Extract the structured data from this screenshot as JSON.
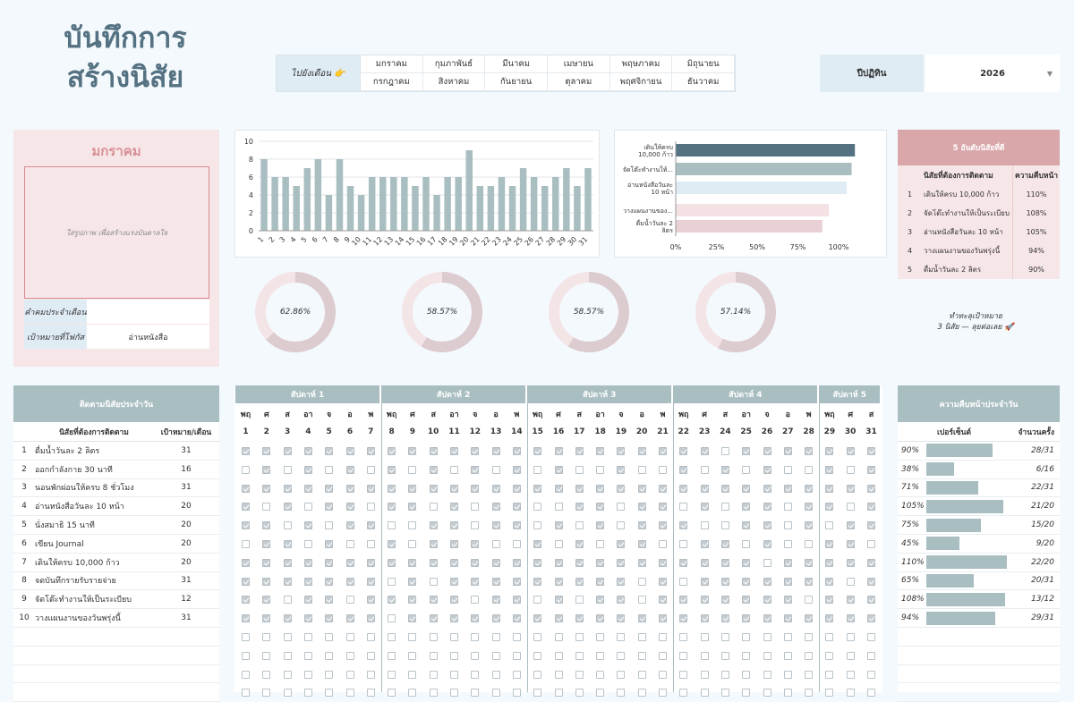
{
  "title_line1": "บันทึกการ",
  "title_line2": "สร้างนิสัย",
  "nav": {
    "goto_label": "ไปยังเดือน 👉",
    "months": [
      "มกราคม",
      "กุมภาพันธ์",
      "มีนาคม",
      "เมษายน",
      "พฤษภาคม",
      "มิถุนายน",
      "กรกฎาคม",
      "สิงหาคม",
      "กันยายน",
      "ตุลาคม",
      "พฤศจิกายน",
      "ธันวาคม"
    ]
  },
  "year": {
    "label": "ปีปฏิทิน",
    "value": "2026"
  },
  "month_card": {
    "name": "มกราคม",
    "photo_placeholder": "ใส่รูปภาพ เพื่อสร้างแรงบันดาลใจ",
    "quote_label": "คำคมประจำเดือน",
    "quote_value": "",
    "focus_label": "เป้าหมายที่โฟกัส",
    "focus_value": "อ่านหนังสือ"
  },
  "chart_data": [
    {
      "type": "bar",
      "categories": [
        "1",
        "2",
        "3",
        "4",
        "5",
        "6",
        "7",
        "8",
        "9",
        "10",
        "11",
        "12",
        "13",
        "14",
        "15",
        "16",
        "17",
        "18",
        "19",
        "20",
        "21",
        "22",
        "23",
        "24",
        "25",
        "26",
        "27",
        "28",
        "29",
        "30",
        "31"
      ],
      "values": [
        8,
        6,
        6,
        5,
        7,
        8,
        4,
        8,
        5,
        4,
        6,
        6,
        6,
        6,
        5,
        6,
        4,
        6,
        6,
        9,
        5,
        5,
        6,
        5,
        7,
        6,
        5,
        6,
        7,
        5,
        7
      ],
      "ylim": [
        0,
        10
      ],
      "yticks": [
        0,
        2,
        4,
        6,
        8,
        10
      ],
      "grid": true
    },
    {
      "type": "bar",
      "orientation": "horizontal",
      "categories": [
        "เดินให้ครบ 10,000 ก้าว",
        "จัดโต๊ะทำงานให้...",
        "อ่านหนังสือวันละ 10 หน้า",
        "วางแผนงานของ...",
        "ดื่มน้ำวันละ 2 ลิตร"
      ],
      "values": [
        110,
        108,
        105,
        94,
        90
      ],
      "colors": [
        "#557282",
        "#a9bec1",
        "#e0ecf4",
        "#f4e1e4",
        "#e9d0d4"
      ],
      "xticks": [
        "0%",
        "25%",
        "50%",
        "75%",
        "100%"
      ],
      "xlim": [
        0,
        110
      ]
    },
    {
      "type": "pie",
      "donuts": [
        {
          "label": "62.86%",
          "value": 62.86
        },
        {
          "label": "58.57%",
          "value": 58.57
        },
        {
          "label": "58.57%",
          "value": 58.57
        },
        {
          "label": "57.14%",
          "value": 57.14
        }
      ]
    }
  ],
  "motto_line1": "ทำทะลุเป้าหมาย",
  "motto_line2": "3 นิสัย — ลุยต่อเลย 🚀",
  "top5": {
    "title": "5 อันดับนิสัยที่ดี",
    "col_habit": "นิสัยที่ต้องการติดตาม",
    "col_progress": "ความคืบหน้า",
    "rows": [
      {
        "n": "1",
        "habit": "เดินให้ครบ 10,000 ก้าว",
        "pct": "110%"
      },
      {
        "n": "2",
        "habit": "จัดโต๊ะทำงานให้เป็นระเบียบ",
        "pct": "108%"
      },
      {
        "n": "3",
        "habit": "อ่านหนังสือวันละ 10 หน้า",
        "pct": "105%"
      },
      {
        "n": "4",
        "habit": "วางแผนงานของวันพรุ่งนี้",
        "pct": "94%"
      },
      {
        "n": "5",
        "habit": "ดื่มน้ำวันละ 2 ลิตร",
        "pct": "90%"
      }
    ]
  },
  "habits": {
    "title": "ติดตามนิสัยประจำวัน",
    "col_habit": "นิสัยที่ต้องการติดตาม",
    "col_goal": "เป้าหมาย/เดือน",
    "rows": [
      {
        "n": "1",
        "name": "ดื่มน้ำวันละ 2 ลิตร",
        "goal": "31"
      },
      {
        "n": "2",
        "name": "ออกกำลังกาย 30 นาที",
        "goal": "16"
      },
      {
        "n": "3",
        "name": "นอนพักผ่อนให้ครบ 8 ชั่วโมง",
        "goal": "31"
      },
      {
        "n": "4",
        "name": "อ่านหนังสือวันละ 10 หน้า",
        "goal": "20"
      },
      {
        "n": "5",
        "name": "นั่งสมาธิ 15 นาที",
        "goal": "20"
      },
      {
        "n": "6",
        "name": "เขียน Journal",
        "goal": "20"
      },
      {
        "n": "7",
        "name": "เดินให้ครบ 10,000 ก้าว",
        "goal": "20"
      },
      {
        "n": "8",
        "name": "จดบันทึกรายรับรายจ่าย",
        "goal": "31"
      },
      {
        "n": "9",
        "name": "จัดโต๊ะทำงานให้เป็นระเบียบ",
        "goal": "12"
      },
      {
        "n": "10",
        "name": "วางแผนงานของวันพรุ่งนี้",
        "goal": "31"
      }
    ]
  },
  "weeks": [
    "สัปดาห์ 1",
    "สัปดาห์ 2",
    "สัปดาห์ 3",
    "สัปดาห์ 4",
    "สัปดาห์ 5"
  ],
  "day_names": [
    "พฤ",
    "ศ",
    "ส",
    "อา",
    "จ",
    "อ",
    "พ",
    "พฤ",
    "ศ",
    "ส",
    "อา",
    "จ",
    "อ",
    "พ",
    "พฤ",
    "ศ",
    "ส",
    "อา",
    "จ",
    "อ",
    "พ",
    "พฤ",
    "ศ",
    "ส",
    "อา",
    "จ",
    "อ",
    "พ",
    "พฤ",
    "ศ",
    "ส"
  ],
  "day_numbers": [
    "1",
    "2",
    "3",
    "4",
    "5",
    "6",
    "7",
    "8",
    "9",
    "10",
    "11",
    "12",
    "13",
    "14",
    "15",
    "16",
    "17",
    "18",
    "19",
    "20",
    "21",
    "22",
    "23",
    "24",
    "25",
    "26",
    "27",
    "28",
    "29",
    "30",
    "31"
  ],
  "checks": [
    "1111111111111111111111101111111",
    "0101010101010101001001010100101",
    "1111111111111111111111111111111",
    "1010110110101100110110101101101",
    "1101011001101101010111001101011",
    "0110100101110010101100110100110",
    "1111111111111111111111111011111",
    "1111111010111111111010111111101",
    "1101101111101101011011111110111",
    "1111111011111111111111111111111",
    "0000000000000000000000000000000",
    "0000000000000000000000000000000",
    "0000000000000000000000000000000",
    "0000000000000000000000000000000"
  ],
  "progress": {
    "title": "ความคืบหน้าประจำวัน",
    "col_pct": "เปอร์เซ็นต์",
    "col_count": "จำนวนครั้ง",
    "rows": [
      {
        "pct": "90%",
        "value": 0.9,
        "frac": "28/31"
      },
      {
        "pct": "38%",
        "value": 0.38,
        "frac": "6/16"
      },
      {
        "pct": "71%",
        "value": 0.71,
        "frac": "22/31"
      },
      {
        "pct": "105%",
        "value": 1.05,
        "frac": "21/20"
      },
      {
        "pct": "75%",
        "value": 0.75,
        "frac": "15/20"
      },
      {
        "pct": "45%",
        "value": 0.45,
        "frac": "9/20"
      },
      {
        "pct": "110%",
        "value": 1.1,
        "frac": "22/20"
      },
      {
        "pct": "65%",
        "value": 0.65,
        "frac": "20/31"
      },
      {
        "pct": "108%",
        "value": 1.08,
        "frac": "13/12"
      },
      {
        "pct": "94%",
        "value": 0.94,
        "frac": "29/31"
      }
    ]
  },
  "colors": {
    "accent": "#557282",
    "header": "#a9bec1",
    "pink": "#f7e6e8",
    "pink_dark": "#d9a7aa",
    "blue_light": "#e0ecf4"
  }
}
